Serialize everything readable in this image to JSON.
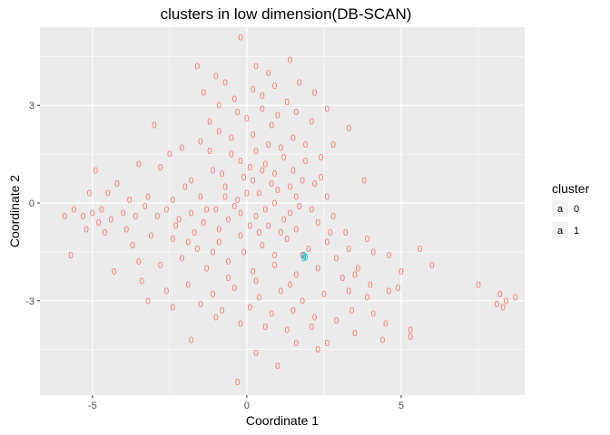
{
  "chart_data": {
    "type": "scatter",
    "title": "clusters in low dimension(DB-SCAN)",
    "xlabel": "Coordinate 1",
    "ylabel": "Coordinate 2",
    "xlim": [
      -6.7,
      9.0
    ],
    "ylim": [
      -5.9,
      5.4
    ],
    "x_ticks": [
      -5,
      0,
      5
    ],
    "x_tick_labels": [
      "-5",
      "0",
      "5"
    ],
    "y_ticks": [
      -3,
      0,
      3
    ],
    "y_tick_labels": [
      "-3",
      "0",
      "3"
    ],
    "grid": true,
    "legend": {
      "title": "cluster",
      "position": "right",
      "entries": [
        {
          "key": "a",
          "label": "0",
          "color": "#f8766d"
        },
        {
          "key": "a",
          "label": "1",
          "color": "#00bfc4"
        }
      ]
    },
    "marker_glyph": "0",
    "colors": {
      "cluster0": "#f8766d",
      "cluster1": "#00bfc4",
      "panel": "#ebebeb",
      "grid": "#ffffff"
    },
    "series": [
      {
        "cluster": "0",
        "color": "#f8766d",
        "points": [
          [
            -0.2,
            5.1
          ],
          [
            -1.6,
            4.2
          ],
          [
            0.3,
            4.2
          ],
          [
            0.7,
            4.0
          ],
          [
            1.4,
            4.4
          ],
          [
            -1.0,
            3.9
          ],
          [
            -0.7,
            3.7
          ],
          [
            0.9,
            3.6
          ],
          [
            1.7,
            3.7
          ],
          [
            0.2,
            3.5
          ],
          [
            -1.4,
            3.4
          ],
          [
            1.3,
            3.1
          ],
          [
            -0.4,
            3.2
          ],
          [
            2.2,
            3.4
          ],
          [
            -3.0,
            2.4
          ],
          [
            0.5,
            2.9
          ],
          [
            1.6,
            2.8
          ],
          [
            2.6,
            2.9
          ],
          [
            3.3,
            2.3
          ],
          [
            2.1,
            2.5
          ],
          [
            -1.2,
            2.5
          ],
          [
            -0.9,
            2.2
          ],
          [
            0.0,
            2.6
          ],
          [
            0.8,
            2.4
          ],
          [
            1.5,
            2.0
          ],
          [
            -0.5,
            2.0
          ],
          [
            2.8,
            1.8
          ],
          [
            -1.5,
            1.9
          ],
          [
            -2.1,
            1.7
          ],
          [
            0.3,
            1.6
          ],
          [
            1.1,
            1.7
          ],
          [
            -2.5,
            1.5
          ],
          [
            -0.2,
            1.3
          ],
          [
            0.6,
            1.2
          ],
          [
            1.9,
            1.3
          ],
          [
            -1.1,
            1.0
          ],
          [
            -3.5,
            1.2
          ],
          [
            -2.8,
            1.1
          ],
          [
            2.4,
            0.8
          ],
          [
            3.8,
            0.7
          ],
          [
            -1.8,
            0.7
          ],
          [
            0.2,
            0.7
          ],
          [
            1.4,
            0.5
          ],
          [
            -0.7,
            0.5
          ],
          [
            -4.9,
            1.0
          ],
          [
            -4.2,
            0.6
          ],
          [
            -5.1,
            0.3
          ],
          [
            -4.5,
            0.3
          ],
          [
            -3.8,
            0.1
          ],
          [
            -3.2,
            0.2
          ],
          [
            -2.4,
            0.1
          ],
          [
            -1.5,
            0.2
          ],
          [
            2.6,
            0.2
          ],
          [
            -0.3,
            0.1
          ],
          [
            0.9,
            0.0
          ],
          [
            1.7,
            -0.1
          ],
          [
            2.1,
            -0.2
          ],
          [
            -5.9,
            -0.4
          ],
          [
            -5.6,
            -0.2
          ],
          [
            -5.3,
            -0.4
          ],
          [
            -5.0,
            -0.3
          ],
          [
            -4.7,
            -0.2
          ],
          [
            -4.4,
            -0.5
          ],
          [
            -4.0,
            -0.3
          ],
          [
            -3.6,
            -0.4
          ],
          [
            -3.3,
            -0.1
          ],
          [
            -2.9,
            -0.4
          ],
          [
            -2.6,
            -0.2
          ],
          [
            -2.2,
            -0.5
          ],
          [
            -1.8,
            -0.3
          ],
          [
            -1.4,
            -0.6
          ],
          [
            -1.0,
            -0.2
          ],
          [
            -0.6,
            -0.5
          ],
          [
            0.3,
            -0.4
          ],
          [
            0.7,
            -0.7
          ],
          [
            1.2,
            -0.5
          ],
          [
            1.6,
            -0.8
          ],
          [
            2.3,
            -0.6
          ],
          [
            2.8,
            -0.4
          ],
          [
            3.2,
            -0.9
          ],
          [
            -5.2,
            -0.8
          ],
          [
            -4.6,
            -0.9
          ],
          [
            -3.9,
            -0.8
          ],
          [
            -3.1,
            -1.0
          ],
          [
            -2.4,
            -1.1
          ],
          [
            -1.7,
            -0.9
          ],
          [
            -0.9,
            -1.2
          ],
          [
            -0.2,
            -1.0
          ],
          [
            0.5,
            -1.3
          ],
          [
            1.3,
            -1.1
          ],
          [
            2.0,
            -1.4
          ],
          [
            2.6,
            -1.2
          ],
          [
            3.3,
            -1.4
          ],
          [
            3.9,
            -1.1
          ],
          [
            4.1,
            -1.5
          ],
          [
            4.6,
            -1.6
          ],
          [
            5.6,
            -1.4
          ],
          [
            6.0,
            -1.9
          ],
          [
            -5.7,
            -1.6
          ],
          [
            -4.3,
            -2.1
          ],
          [
            -3.5,
            -1.8
          ],
          [
            -2.8,
            -1.9
          ],
          [
            -2.1,
            -1.7
          ],
          [
            -1.3,
            -2.0
          ],
          [
            -0.6,
            -1.8
          ],
          [
            0.2,
            -2.1
          ],
          [
            0.9,
            -1.9
          ],
          [
            1.6,
            -2.2
          ],
          [
            2.3,
            -2.0
          ],
          [
            3.1,
            -2.3
          ],
          [
            3.5,
            -2.2
          ],
          [
            4.0,
            -2.5
          ],
          [
            5.0,
            -2.1
          ],
          [
            -3.4,
            -2.4
          ],
          [
            -2.6,
            -2.7
          ],
          [
            -1.9,
            -2.5
          ],
          [
            -1.1,
            -2.8
          ],
          [
            -0.4,
            -2.6
          ],
          [
            0.4,
            -2.9
          ],
          [
            1.1,
            -2.7
          ],
          [
            1.8,
            -3.0
          ],
          [
            2.5,
            -2.8
          ],
          [
            3.3,
            -2.7
          ],
          [
            3.9,
            -2.9
          ],
          [
            4.6,
            -2.7
          ],
          [
            4.9,
            -2.6
          ],
          [
            -3.2,
            -3.0
          ],
          [
            -2.4,
            -3.2
          ],
          [
            -1.5,
            -3.1
          ],
          [
            -0.8,
            -3.3
          ],
          [
            0.1,
            -3.2
          ],
          [
            0.8,
            -3.4
          ],
          [
            1.5,
            -3.3
          ],
          [
            2.2,
            -3.5
          ],
          [
            2.9,
            -3.6
          ],
          [
            3.4,
            -3.3
          ],
          [
            4.1,
            -3.4
          ],
          [
            4.5,
            -3.7
          ],
          [
            -1.0,
            -3.5
          ],
          [
            -0.2,
            -3.7
          ],
          [
            0.6,
            -3.8
          ],
          [
            1.3,
            -3.9
          ],
          [
            2.1,
            -3.8
          ],
          [
            3.5,
            -4.0
          ],
          [
            5.3,
            -3.9
          ],
          [
            5.3,
            -4.1
          ],
          [
            -1.8,
            -4.2
          ],
          [
            1.6,
            -4.3
          ],
          [
            2.6,
            -4.3
          ],
          [
            4.4,
            -4.2
          ],
          [
            2.3,
            -4.5
          ],
          [
            0.3,
            -4.6
          ],
          [
            1.0,
            -5.0
          ],
          [
            -0.3,
            -5.5
          ],
          [
            7.5,
            -2.5
          ],
          [
            8.2,
            -2.8
          ],
          [
            8.4,
            -3.0
          ],
          [
            8.7,
            -2.9
          ],
          [
            8.1,
            -3.1
          ],
          [
            8.3,
            -3.2
          ],
          [
            -0.1,
            0.8
          ],
          [
            0.4,
            0.3
          ],
          [
            0.9,
            0.9
          ],
          [
            1.2,
            1.4
          ],
          [
            -0.4,
            -0.1
          ],
          [
            0.1,
            -0.7
          ],
          [
            0.6,
            -0.2
          ],
          [
            1.0,
            0.4
          ],
          [
            1.4,
            -0.3
          ],
          [
            -0.8,
            0.9
          ],
          [
            -1.3,
            -0.2
          ],
          [
            -0.5,
            1.5
          ],
          [
            0.2,
            2.1
          ],
          [
            0.7,
            1.8
          ],
          [
            1.8,
            0.7
          ],
          [
            -1.6,
            -1.4
          ],
          [
            -0.1,
            -1.5
          ],
          [
            0.4,
            -0.9
          ],
          [
            1.8,
            -1.6
          ],
          [
            2.7,
            -0.9
          ],
          [
            -2.0,
            0.5
          ],
          [
            -0.9,
            -0.8
          ],
          [
            1.5,
            1.0
          ],
          [
            0.0,
            0.3
          ],
          [
            -0.3,
            2.8
          ],
          [
            0.5,
            3.3
          ],
          [
            1.0,
            2.7
          ],
          [
            -0.9,
            3.0
          ],
          [
            1.9,
            1.8
          ],
          [
            -2.3,
            -0.7
          ],
          [
            -3.7,
            -1.3
          ],
          [
            -4.8,
            -0.6
          ],
          [
            2.9,
            -1.7
          ],
          [
            3.6,
            -2.0
          ],
          [
            0.3,
            -2.4
          ],
          [
            -1.2,
            1.6
          ],
          [
            2.4,
            1.4
          ],
          [
            -0.6,
            -2.3
          ],
          [
            1.4,
            -2.5
          ],
          [
            0.8,
            0.6
          ],
          [
            -0.2,
            -0.3
          ],
          [
            0.5,
            1.0
          ],
          [
            1.1,
            -0.9
          ],
          [
            -0.7,
            0.2
          ],
          [
            0.1,
            1.1
          ],
          [
            1.6,
            0.2
          ],
          [
            -1.1,
            -1.5
          ],
          [
            0.9,
            -1.6
          ],
          [
            2.2,
            0.6
          ],
          [
            -1.9,
            -1.2
          ]
        ]
      },
      {
        "cluster": "1",
        "color": "#00bfc4",
        "points": [
          [
            1.85,
            -1.6
          ],
          [
            1.9,
            -1.65
          ],
          [
            1.85,
            -1.7
          ]
        ]
      }
    ]
  }
}
